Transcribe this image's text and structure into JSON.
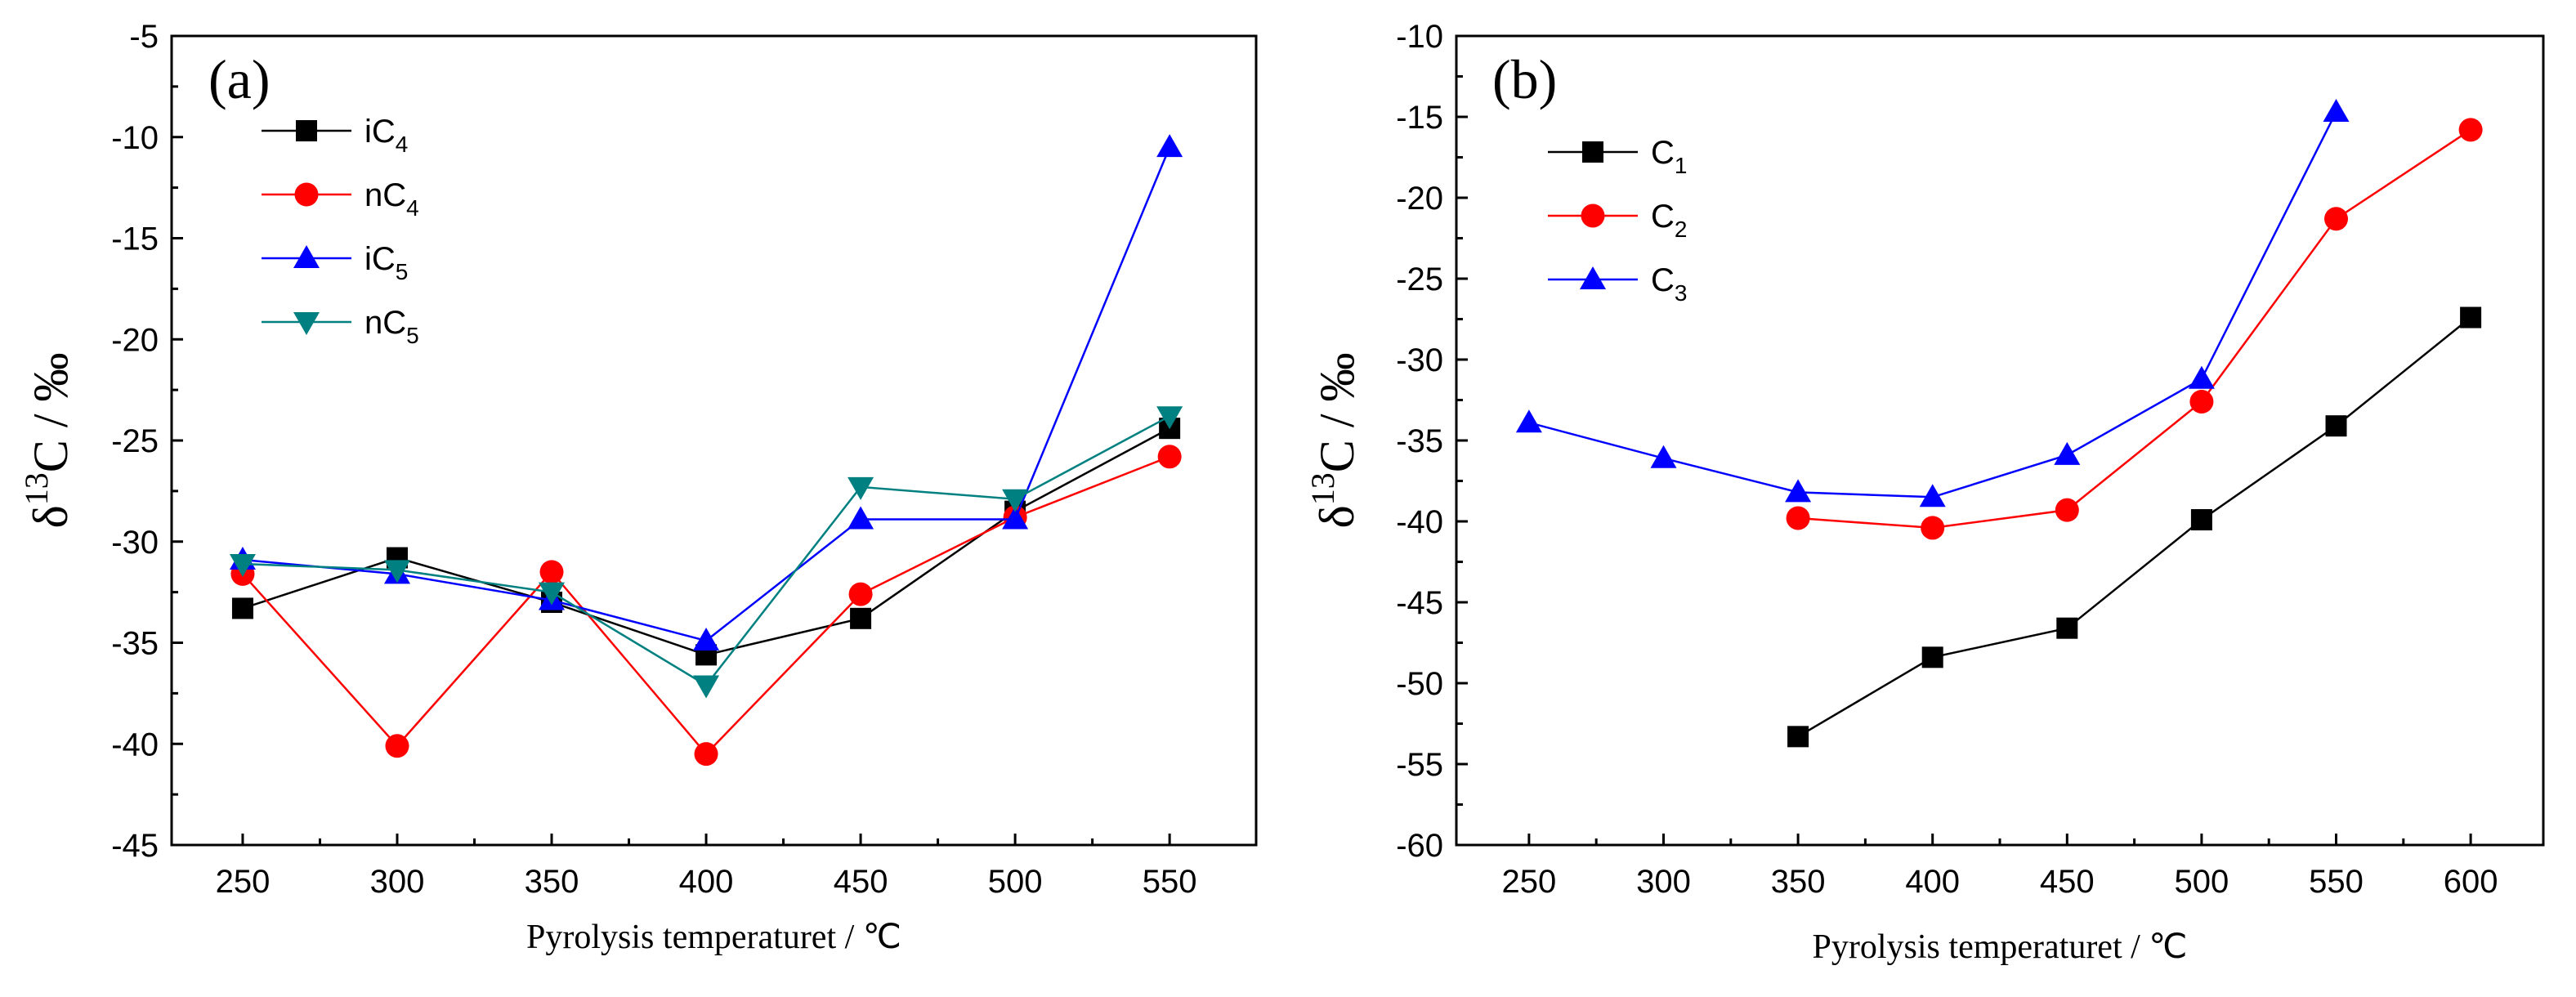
{
  "chart_data": [
    {
      "type": "line",
      "panel_label": "(a)",
      "xlabel": "Pyrolysis temperaturet / ℃",
      "ylabel": {
        "main": "δ",
        "sup": "13",
        "rest": "C / ‰"
      },
      "x": [
        250,
        300,
        350,
        400,
        450,
        500,
        550
      ],
      "xticks": [
        250,
        300,
        350,
        400,
        450,
        500,
        550
      ],
      "xlim": [
        227,
        578
      ],
      "ylim": [
        -45,
        -5
      ],
      "yticks": [
        -45,
        -40,
        -35,
        -30,
        -25,
        -20,
        -15,
        -10,
        -5
      ],
      "legend_position": "top-left",
      "series": [
        {
          "name": "iC",
          "sub": "4",
          "color": "#000000",
          "marker": "square",
          "values": [
            -33.3,
            -30.8,
            -33.0,
            -35.6,
            -33.8,
            -28.5,
            -24.4
          ]
        },
        {
          "name": "nC",
          "sub": "4",
          "color": "#ff0000",
          "marker": "circle",
          "values": [
            -31.6,
            -40.1,
            -31.5,
            -40.5,
            -32.6,
            -28.8,
            -25.8
          ]
        },
        {
          "name": "iC",
          "sub": "5",
          "color": "#0000ff",
          "marker": "triangle-up",
          "values": [
            -30.9,
            -31.6,
            -32.9,
            -34.9,
            -28.9,
            -28.9,
            -10.5
          ]
        },
        {
          "name": "nC",
          "sub": "5",
          "color": "#008080",
          "marker": "triangle-down",
          "values": [
            -31.1,
            -31.4,
            -32.5,
            -37.1,
            -27.3,
            -27.9,
            -23.8
          ]
        }
      ]
    },
    {
      "type": "line",
      "panel_label": "(b)",
      "xlabel": "Pyrolysis temperaturet / ℃",
      "ylabel": {
        "main": "δ",
        "sup": "13",
        "rest": "C / ‰"
      },
      "x": [
        250,
        300,
        350,
        400,
        450,
        500,
        550,
        600
      ],
      "xticks": [
        250,
        300,
        350,
        400,
        450,
        500,
        550,
        600
      ],
      "xlim": [
        223,
        627
      ],
      "ylim": [
        -60,
        -10
      ],
      "yticks": [
        -60,
        -55,
        -50,
        -45,
        -40,
        -35,
        -30,
        -25,
        -20,
        -15,
        -10
      ],
      "legend_position": "top-left",
      "series": [
        {
          "name": "C",
          "sub": "1",
          "color": "#000000",
          "marker": "square",
          "values": [
            null,
            null,
            -53.3,
            -48.4,
            -46.6,
            -39.9,
            -34.1,
            -27.4
          ]
        },
        {
          "name": "C",
          "sub": "2",
          "color": "#ff0000",
          "marker": "circle",
          "values": [
            null,
            null,
            -39.8,
            -40.4,
            -39.3,
            -32.6,
            -21.3,
            -15.8
          ]
        },
        {
          "name": "C",
          "sub": "3",
          "color": "#0000ff",
          "marker": "triangle-up",
          "values": [
            -33.9,
            -36.1,
            -38.2,
            -38.5,
            -35.9,
            -31.2,
            -14.7,
            null
          ]
        }
      ]
    }
  ]
}
